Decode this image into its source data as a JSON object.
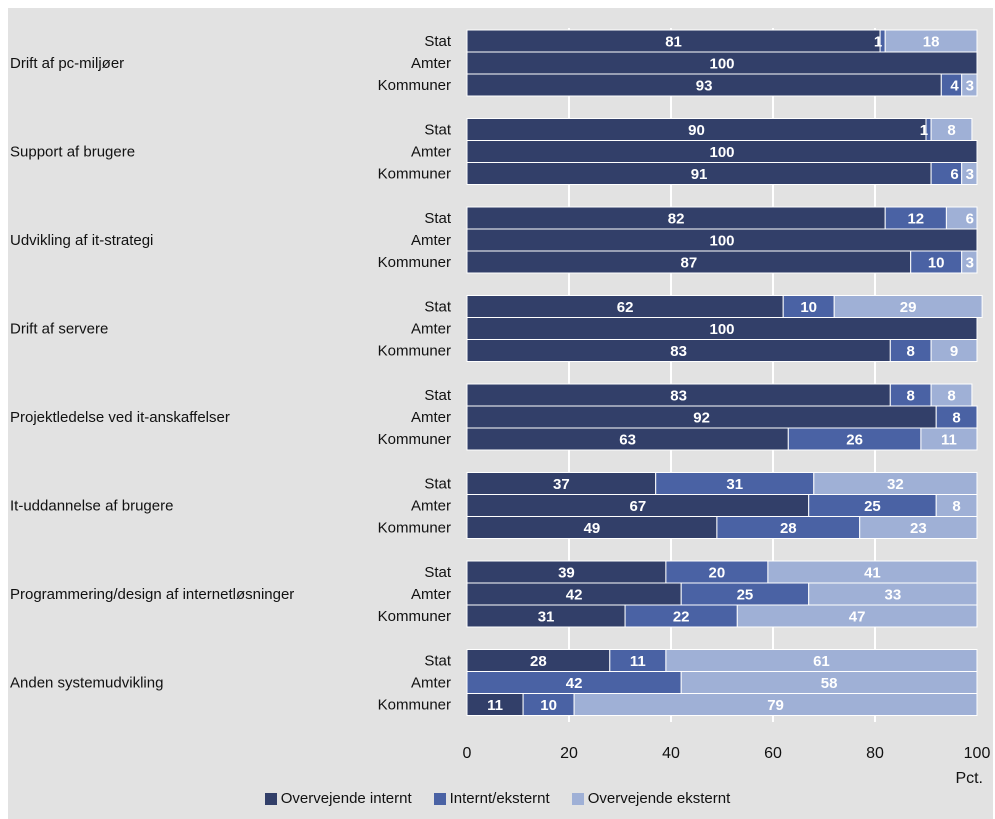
{
  "chart_data": {
    "type": "bar",
    "orientation": "horizontal",
    "stacked": true,
    "xlim": [
      0,
      100
    ],
    "xticks": [
      "0",
      "20",
      "40",
      "60",
      "80",
      "100"
    ],
    "xunit": "Pct.",
    "legend_position": "bottom",
    "colors": {
      "Overvejende internt": "#323f69",
      "Internt/eksternt": "#4a62a4",
      "Overvejende eksternt": "#9fb0d6",
      "background": "#e2e2e2",
      "gridline": "#ffffff"
    },
    "series": [
      {
        "name": "Overvejende internt"
      },
      {
        "name": "Internt/eksternt"
      },
      {
        "name": "Overvejende eksternt"
      }
    ],
    "sub_categories": [
      "Stat",
      "Amter",
      "Kommuner"
    ],
    "groups": [
      {
        "category": "Drift af pc-miljøer",
        "rows": [
          [
            81,
            1,
            18
          ],
          [
            100,
            0,
            0
          ],
          [
            93,
            4,
            3
          ]
        ]
      },
      {
        "category": "Support af brugere",
        "rows": [
          [
            90,
            1,
            8
          ],
          [
            100,
            0,
            0
          ],
          [
            91,
            6,
            3
          ]
        ]
      },
      {
        "category": "Udvikling af it-strategi",
        "rows": [
          [
            82,
            12,
            6
          ],
          [
            100,
            0,
            0
          ],
          [
            87,
            10,
            3
          ]
        ]
      },
      {
        "category": "Drift af servere",
        "rows": [
          [
            62,
            10,
            29
          ],
          [
            100,
            0,
            0
          ],
          [
            83,
            8,
            9
          ]
        ]
      },
      {
        "category": "Projektledelse ved it-anskaffelser",
        "rows": [
          [
            83,
            8,
            8
          ],
          [
            92,
            8,
            0
          ],
          [
            63,
            26,
            11
          ]
        ]
      },
      {
        "category": "It-uddannelse af brugere",
        "rows": [
          [
            37,
            31,
            32
          ],
          [
            67,
            25,
            8
          ],
          [
            49,
            28,
            23
          ]
        ]
      },
      {
        "category": "Programmering/design af internetløsninger",
        "rows": [
          [
            39,
            20,
            41
          ],
          [
            42,
            25,
            33
          ],
          [
            31,
            22,
            47
          ]
        ]
      },
      {
        "category": "Anden systemudvikling",
        "rows": [
          [
            28,
            11,
            61
          ],
          [
            0,
            42,
            58
          ],
          [
            11,
            10,
            79
          ]
        ]
      }
    ]
  }
}
